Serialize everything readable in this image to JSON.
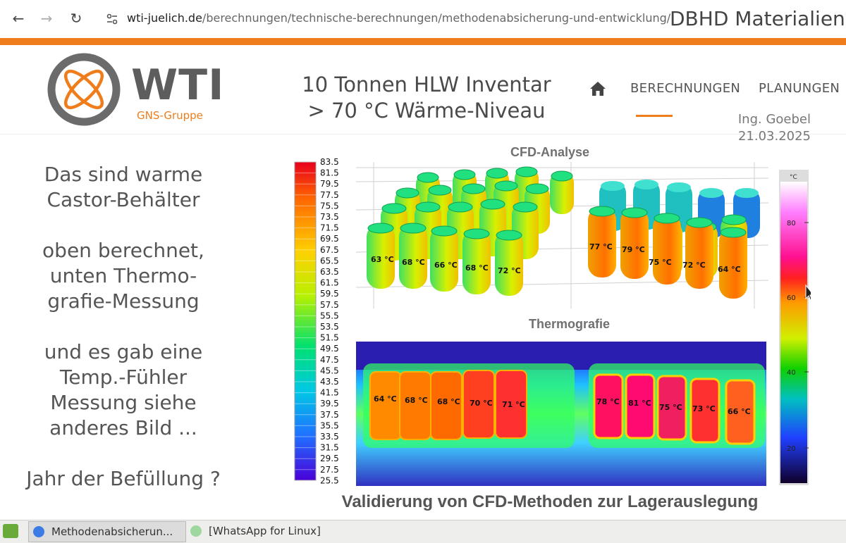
{
  "browser": {
    "url_host": "wti-juelich.de",
    "url_path": "/berechnungen/technische-berechnungen/methodenabsicherung-und-entwicklung/",
    "window_title": "DBHD Materialien"
  },
  "site": {
    "logo_text": "WTI",
    "logo_sub": "GNS-Gruppe",
    "title_line1": "10 Tonnen HLW Inventar",
    "title_line2": "> 70 °C Wärme-Niveau",
    "nav": [
      "BERECHNUNGEN",
      "PLANUNGEN"
    ],
    "author": "Ing. Goebel",
    "date": "21.03.2025",
    "accent": "#ef7d1b"
  },
  "left_text": {
    "p1a": "Das sind warme",
    "p1b": "Castor-Behälter",
    "p2a": "oben berechnet,",
    "p2b": "unten Thermo-",
    "p2c": "grafie-Messung",
    "p3a": "und es gab eine",
    "p3b": "Temp.-Fühler",
    "p3c": "Messung siehe",
    "p3d": "anderes Bild ...",
    "p4": "Jahr der Befüllung ?"
  },
  "figure": {
    "cfd_title": "CFD-Analyse",
    "thermo_title": "Thermografie",
    "caption": "Validierung von CFD-Methoden zur Lagerauslegung",
    "scale_labels": [
      "83.5",
      "81.5",
      "79.5",
      "77.5",
      "75.5",
      "73.5",
      "71.5",
      "69.5",
      "67.5",
      "65.5",
      "63.5",
      "61.5",
      "59.5",
      "57.5",
      "55.5",
      "53.5",
      "51.5",
      "49.5",
      "47.5",
      "45.5",
      "43.5",
      "41.5",
      "39.5",
      "37.5",
      "35.5",
      "33.5",
      "31.5",
      "29.5",
      "27.5",
      "25.5"
    ],
    "cfd_labels_left": [
      "63 °C",
      "68 °C",
      "66 °C",
      "68 °C",
      "72 °C"
    ],
    "cfd_labels_right": [
      "77 °C",
      "79 °C",
      "75 °C",
      "72 °C",
      "64 °C"
    ],
    "thermo_labels_left": [
      "64 °C",
      "68 °C",
      "68 °C",
      "70 °C",
      "71 °C"
    ],
    "thermo_labels_right": [
      "78 °C",
      "81 °C",
      "75 °C",
      "73 °C",
      "66 °C"
    ],
    "right_scale_unit": "°C",
    "right_scale_ticks": [
      "80",
      "60",
      "40",
      "20"
    ]
  },
  "taskbar": {
    "task1": "Methodenabsicherun...",
    "task2": "[WhatsApp for Linux]"
  }
}
